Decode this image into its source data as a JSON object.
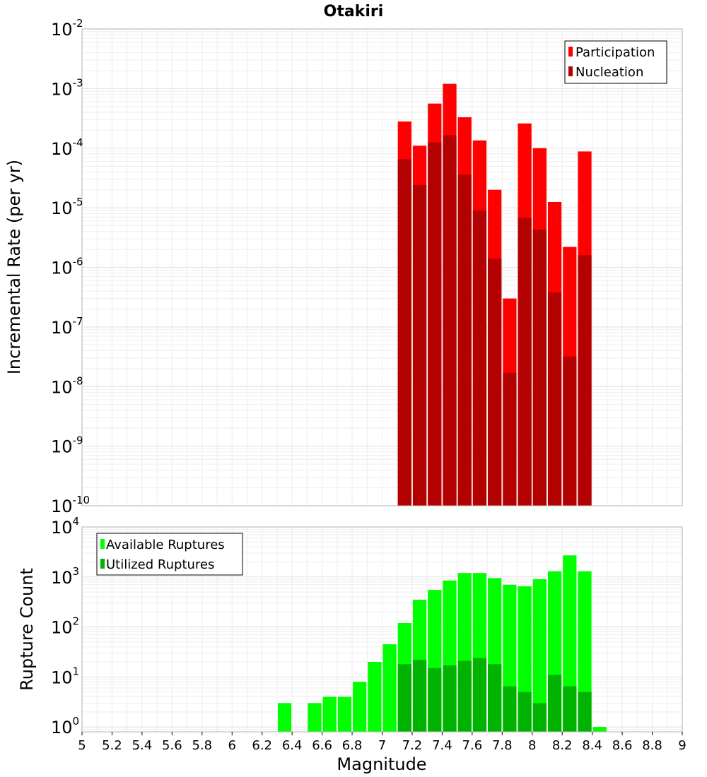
{
  "chart_data": [
    {
      "type": "bar",
      "title": "Otakiri",
      "ylabel": "Incremental Rate (per yr)",
      "xlabel": "",
      "yscale": "log",
      "ylim": [
        1e-10,
        0.01
      ],
      "xlim": [
        5,
        9
      ],
      "y_ticks": [
        {
          "base": "10",
          "exp": "-10",
          "value": 1e-10
        },
        {
          "base": "10",
          "exp": "-9",
          "value": 1e-09
        },
        {
          "base": "10",
          "exp": "-8",
          "value": 1e-08
        },
        {
          "base": "10",
          "exp": "-7",
          "value": 1e-07
        },
        {
          "base": "10",
          "exp": "-6",
          "value": 1e-06
        },
        {
          "base": "10",
          "exp": "-5",
          "value": 1e-05
        },
        {
          "base": "10",
          "exp": "-4",
          "value": 0.0001
        },
        {
          "base": "10",
          "exp": "-3",
          "value": 0.001
        },
        {
          "base": "10",
          "exp": "-2",
          "value": 0.01
        }
      ],
      "grid": true,
      "legend_position": "top-right",
      "x": [
        7.15,
        7.25,
        7.35,
        7.45,
        7.55,
        7.65,
        7.75,
        7.85,
        7.95,
        8.05,
        8.15,
        8.25,
        8.35
      ],
      "series": [
        {
          "name": "Participation",
          "color": "#ff0000",
          "values": [
            0.00028,
            0.00011,
            0.00056,
            0.0012,
            0.00033,
            0.000135,
            2e-05,
            3e-07,
            0.00026,
            0.0001,
            1.25e-05,
            2.2e-06,
            8.8e-05
          ]
        },
        {
          "name": "Nucleation",
          "color": "#b30000",
          "values": [
            6.5e-05,
            2.4e-05,
            0.000125,
            0.000165,
            3.6e-05,
            9e-06,
            1.4e-06,
            1.7e-08,
            6.8e-06,
            4.3e-06,
            3.8e-07,
            3.2e-08,
            1.6e-06
          ]
        }
      ]
    },
    {
      "type": "bar",
      "title": "",
      "ylabel": "Rupture Count",
      "xlabel": "Magnitude",
      "yscale": "log",
      "ylim": [
        0.8,
        10000.0
      ],
      "xlim": [
        5,
        9
      ],
      "y_ticks": [
        {
          "base": "10",
          "exp": "0",
          "value": 1
        },
        {
          "base": "10",
          "exp": "1",
          "value": 10
        },
        {
          "base": "10",
          "exp": "2",
          "value": 100
        },
        {
          "base": "10",
          "exp": "3",
          "value": 1000
        },
        {
          "base": "10",
          "exp": "4",
          "value": 10000
        }
      ],
      "x_ticks": [
        "5",
        "5.2",
        "5.4",
        "5.6",
        "5.8",
        "6",
        "6.2",
        "6.4",
        "6.6",
        "6.8",
        "7",
        "7.2",
        "7.4",
        "7.6",
        "7.8",
        "8",
        "8.2",
        "8.4",
        "8.6",
        "8.8",
        "9"
      ],
      "grid": true,
      "legend_position": "top-left",
      "x": [
        6.35,
        6.45,
        6.55,
        6.65,
        6.75,
        6.85,
        6.95,
        7.05,
        7.15,
        7.25,
        7.35,
        7.45,
        7.55,
        7.65,
        7.75,
        7.85,
        7.95,
        8.05,
        8.15,
        8.25,
        8.35,
        8.45
      ],
      "series": [
        {
          "name": "Available Ruptures",
          "color": "#00ff00",
          "values": [
            3,
            0,
            3,
            4,
            4,
            8,
            20,
            45,
            120,
            350,
            550,
            850,
            1200,
            1200,
            950,
            700,
            650,
            900,
            1300,
            2700,
            1300,
            1
          ]
        },
        {
          "name": "Utilized Ruptures",
          "color": "#00b300",
          "values": [
            0,
            0,
            0,
            0,
            0,
            0,
            0,
            0,
            18,
            22,
            15,
            17,
            21,
            24,
            18,
            6.5,
            5,
            3,
            11,
            6.5,
            5,
            0
          ]
        }
      ]
    }
  ]
}
